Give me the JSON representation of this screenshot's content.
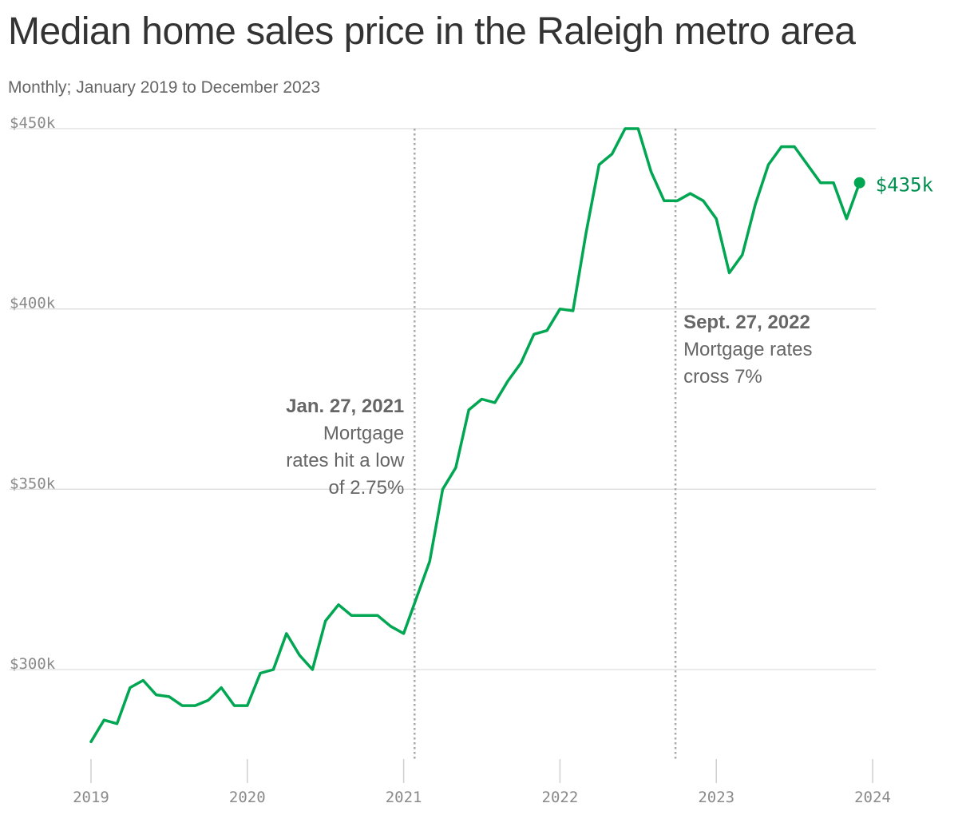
{
  "title": "Median home sales price in the Raleigh metro area",
  "subtitle": "Monthly; January 2019 to December 2023",
  "chart_data": {
    "type": "line",
    "title": "Median home sales price in the Raleigh metro area",
    "subtitle": "Monthly; January 2019 to December 2023",
    "xlabel": "",
    "ylabel": "",
    "x_range": [
      2019,
      2024
    ],
    "ylim": [
      280000,
      450000
    ],
    "y_ticks": [
      300000,
      350000,
      400000,
      450000
    ],
    "y_tick_labels": [
      "$300k",
      "$350k",
      "$400k",
      "$450k"
    ],
    "x_ticks": [
      2019,
      2020,
      2021,
      2022,
      2023,
      2024
    ],
    "x_tick_labels": [
      "2019",
      "2020",
      "2021",
      "2022",
      "2023",
      "2024"
    ],
    "grid": "horizontal",
    "legend": "none",
    "color": "#00a651",
    "series": [
      {
        "x": [
          "2019-01",
          "2019-02",
          "2019-03",
          "2019-04",
          "2019-05",
          "2019-06",
          "2019-07",
          "2019-08",
          "2019-09",
          "2019-10",
          "2019-11",
          "2019-12",
          "2020-01",
          "2020-02",
          "2020-03",
          "2020-04",
          "2020-05",
          "2020-06",
          "2020-07",
          "2020-08",
          "2020-09",
          "2020-10",
          "2020-11",
          "2020-12",
          "2021-01",
          "2021-02",
          "2021-03",
          "2021-04",
          "2021-05",
          "2021-06",
          "2021-07",
          "2021-08",
          "2021-09",
          "2021-10",
          "2021-11",
          "2021-12",
          "2022-01",
          "2022-02",
          "2022-03",
          "2022-04",
          "2022-05",
          "2022-06",
          "2022-07",
          "2022-08",
          "2022-09",
          "2022-10",
          "2022-11",
          "2022-12",
          "2023-01",
          "2023-02",
          "2023-03",
          "2023-04",
          "2023-05",
          "2023-06",
          "2023-07",
          "2023-08",
          "2023-09",
          "2023-10",
          "2023-11",
          "2023-12"
        ],
        "values": [
          280000,
          286000,
          285000,
          295000,
          297000,
          293000,
          292500,
          290000,
          290000,
          291500,
          295000,
          290000,
          290000,
          299000,
          300000,
          310000,
          304000,
          300000,
          313500,
          318000,
          315000,
          315000,
          315000,
          312000,
          310000,
          320000,
          330000,
          350000,
          356000,
          372000,
          375000,
          374000,
          380000,
          385000,
          393000,
          394000,
          400000,
          399500,
          421000,
          440000,
          443000,
          450000,
          450000,
          438000,
          430000,
          430000,
          432000,
          430000,
          425000,
          410000,
          415000,
          429000,
          440000,
          445000,
          445000,
          440000,
          435000,
          435000,
          425000,
          435000
        ]
      }
    ],
    "annotations": [
      {
        "date": "2021-01-27",
        "title": "Jan. 27, 2021",
        "lines": [
          "Mortgage",
          "rates hit a low",
          "of 2.75%"
        ]
      },
      {
        "date": "2022-09-27",
        "title": "Sept. 27, 2022",
        "lines": [
          "Mortgage rates",
          "cross 7%"
        ]
      }
    ],
    "end_label": "$435k"
  }
}
